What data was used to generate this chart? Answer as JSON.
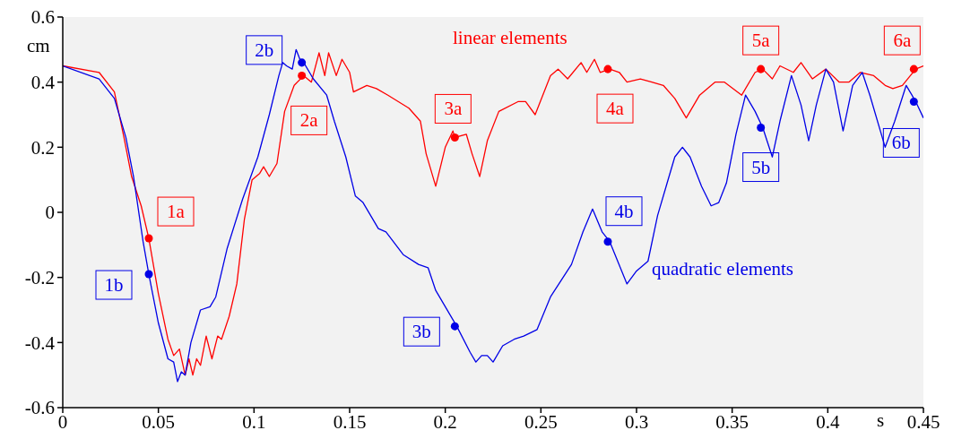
{
  "chart_data": {
    "type": "line",
    "xlabel": "s",
    "ylabel": "cm",
    "xlim": [
      0,
      0.45
    ],
    "ylim": [
      -0.6,
      0.6
    ],
    "xticks": [
      0,
      0.05,
      0.1,
      0.15,
      0.2,
      0.25,
      0.3,
      0.35,
      0.4,
      0.45
    ],
    "yticks": [
      -0.6,
      -0.4,
      -0.2,
      0,
      0.2,
      0.4,
      0.6
    ],
    "grid": false,
    "legend": false,
    "annotations": [
      {
        "text": "1a",
        "x": 0.045,
        "y": -0.08
      },
      {
        "text": "2a",
        "x": 0.125,
        "y": 0.42
      },
      {
        "text": "3a",
        "x": 0.205,
        "y": 0.23
      },
      {
        "text": "4a",
        "x": 0.285,
        "y": 0.44
      },
      {
        "text": "5a",
        "x": 0.365,
        "y": 0.44
      },
      {
        "text": "6a",
        "x": 0.445,
        "y": 0.44
      },
      {
        "text": "1b",
        "x": 0.045,
        "y": -0.19
      },
      {
        "text": "2b",
        "x": 0.125,
        "y": 0.46
      },
      {
        "text": "3b",
        "x": 0.205,
        "y": -0.35
      },
      {
        "text": "4b",
        "x": 0.285,
        "y": -0.09
      },
      {
        "text": "5b",
        "x": 0.365,
        "y": 0.26
      },
      {
        "text": "6b",
        "x": 0.445,
        "y": 0.34
      }
    ],
    "series": [
      {
        "name": "linear elements",
        "color": "#ff0000",
        "marker": "none",
        "x": [
          0,
          0.019,
          0.027,
          0.032,
          0.036,
          0.041,
          0.045,
          0.05,
          0.055,
          0.058,
          0.061,
          0.064,
          0.066,
          0.068,
          0.07,
          0.072,
          0.075,
          0.078,
          0.081,
          0.083,
          0.087,
          0.091,
          0.095,
          0.099,
          0.103,
          0.105,
          0.108,
          0.112,
          0.116,
          0.121,
          0.126,
          0.13,
          0.134,
          0.137,
          0.139,
          0.143,
          0.146,
          0.15,
          0.152,
          0.159,
          0.164,
          0.17,
          0.181,
          0.187,
          0.19,
          0.195,
          0.2,
          0.204,
          0.205,
          0.211,
          0.214,
          0.218,
          0.222,
          0.228,
          0.238,
          0.242,
          0.247,
          0.255,
          0.259,
          0.264,
          0.271,
          0.274,
          0.278,
          0.281,
          0.286,
          0.291,
          0.295,
          0.302,
          0.308,
          0.314,
          0.32,
          0.326,
          0.333,
          0.341,
          0.346,
          0.355,
          0.362,
          0.366,
          0.371,
          0.375,
          0.382,
          0.386,
          0.392,
          0.399,
          0.406,
          0.411,
          0.417,
          0.424,
          0.43,
          0.434,
          0.439,
          0.446,
          0.45
        ],
        "values": [
          0.45,
          0.43,
          0.37,
          0.23,
          0.11,
          0.02,
          -0.08,
          -0.25,
          -0.39,
          -0.44,
          -0.42,
          -0.5,
          -0.45,
          -0.5,
          -0.45,
          -0.47,
          -0.38,
          -0.45,
          -0.38,
          -0.39,
          -0.32,
          -0.22,
          -0.02,
          0.1,
          0.12,
          0.14,
          0.11,
          0.15,
          0.31,
          0.39,
          0.42,
          0.4,
          0.49,
          0.42,
          0.49,
          0.42,
          0.47,
          0.43,
          0.37,
          0.39,
          0.38,
          0.36,
          0.32,
          0.28,
          0.18,
          0.08,
          0.2,
          0.25,
          0.23,
          0.24,
          0.18,
          0.11,
          0.22,
          0.31,
          0.34,
          0.34,
          0.3,
          0.42,
          0.44,
          0.41,
          0.46,
          0.43,
          0.47,
          0.43,
          0.44,
          0.43,
          0.4,
          0.41,
          0.4,
          0.39,
          0.35,
          0.29,
          0.36,
          0.4,
          0.4,
          0.36,
          0.43,
          0.44,
          0.41,
          0.45,
          0.43,
          0.46,
          0.41,
          0.44,
          0.4,
          0.4,
          0.43,
          0.42,
          0.39,
          0.38,
          0.39,
          0.44,
          0.45
        ]
      },
      {
        "name": "quadratic elements",
        "color": "#0000e6",
        "marker": "none",
        "x": [
          0,
          0.019,
          0.027,
          0.033,
          0.037,
          0.042,
          0.045,
          0.05,
          0.055,
          0.058,
          0.06,
          0.062,
          0.064,
          0.067,
          0.072,
          0.077,
          0.08,
          0.086,
          0.094,
          0.102,
          0.108,
          0.113,
          0.115,
          0.117,
          0.12,
          0.122,
          0.124,
          0.126,
          0.131,
          0.138,
          0.142,
          0.148,
          0.153,
          0.157,
          0.165,
          0.169,
          0.178,
          0.186,
          0.191,
          0.195,
          0.206,
          0.213,
          0.216,
          0.219,
          0.222,
          0.225,
          0.23,
          0.236,
          0.241,
          0.248,
          0.255,
          0.266,
          0.272,
          0.277,
          0.282,
          0.286,
          0.295,
          0.3,
          0.306,
          0.311,
          0.316,
          0.32,
          0.324,
          0.328,
          0.334,
          0.339,
          0.343,
          0.347,
          0.352,
          0.357,
          0.362,
          0.366,
          0.371,
          0.375,
          0.381,
          0.386,
          0.39,
          0.394,
          0.399,
          0.403,
          0.408,
          0.413,
          0.418,
          0.422,
          0.43,
          0.435,
          0.441,
          0.446,
          0.45
        ],
        "values": [
          0.45,
          0.41,
          0.35,
          0.23,
          0.11,
          -0.09,
          -0.19,
          -0.34,
          -0.45,
          -0.46,
          -0.52,
          -0.49,
          -0.5,
          -0.4,
          -0.3,
          -0.29,
          -0.26,
          -0.11,
          0.04,
          0.17,
          0.3,
          0.42,
          0.46,
          0.45,
          0.44,
          0.5,
          0.47,
          0.46,
          0.41,
          0.36,
          0.28,
          0.17,
          0.05,
          0.03,
          -0.05,
          -0.06,
          -0.13,
          -0.16,
          -0.17,
          -0.24,
          -0.35,
          -0.43,
          -0.46,
          -0.44,
          -0.44,
          -0.46,
          -0.41,
          -0.39,
          -0.38,
          -0.36,
          -0.26,
          -0.16,
          -0.06,
          0.01,
          -0.06,
          -0.09,
          -0.22,
          -0.18,
          -0.15,
          -0.01,
          0.09,
          0.17,
          0.2,
          0.17,
          0.08,
          0.02,
          0.03,
          0.09,
          0.24,
          0.36,
          0.31,
          0.26,
          0.17,
          0.28,
          0.42,
          0.33,
          0.22,
          0.33,
          0.44,
          0.4,
          0.25,
          0.39,
          0.43,
          0.36,
          0.2,
          0.28,
          0.39,
          0.34,
          0.29
        ]
      },
      {
        "type": "scatter",
        "color": "#ff0000",
        "marker": "circle",
        "x": [
          0.045,
          0.125,
          0.205,
          0.285,
          0.365,
          0.445
        ],
        "values": [
          -0.08,
          0.42,
          0.23,
          0.44,
          0.44,
          0.44
        ]
      },
      {
        "type": "scatter",
        "color": "#0000e6",
        "marker": "circle",
        "x": [
          0.045,
          0.125,
          0.205,
          0.285,
          0.365,
          0.445
        ],
        "values": [
          -0.19,
          0.46,
          -0.35,
          -0.09,
          0.26,
          0.34
        ]
      }
    ]
  }
}
